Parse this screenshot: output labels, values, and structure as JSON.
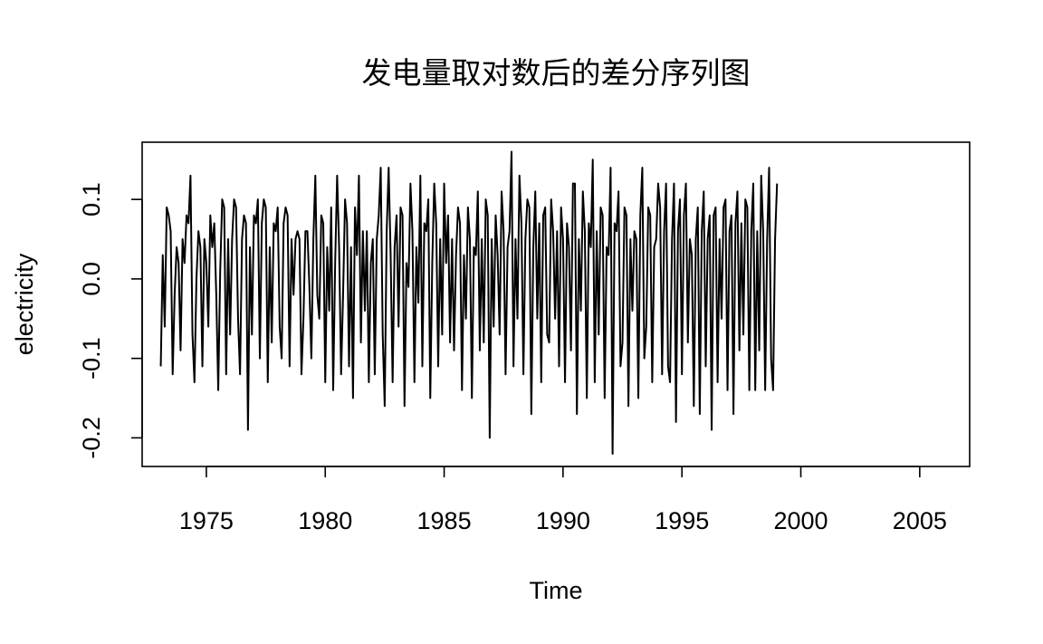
{
  "chart_data": {
    "type": "line",
    "title": "发电量取对数后的差分序列图",
    "xlabel": "Time",
    "ylabel": "electricity",
    "xlim": [
      1972.3,
      2007.1
    ],
    "ylim": [
      -0.236,
      0.172
    ],
    "x_ticks": [
      1975,
      1980,
      1985,
      1990,
      1995,
      2000,
      2005
    ],
    "x_tick_labels": [
      "1975",
      "1980",
      "1985",
      "1990",
      "1995",
      "2000",
      "2005"
    ],
    "y_ticks": [
      -0.2,
      -0.1,
      0.0,
      0.1
    ],
    "y_tick_labels": [
      "-0.2",
      "-0.1",
      "0.0",
      "0.1"
    ],
    "frequency": 12,
    "start": [
      1973,
      2
    ],
    "series": [
      {
        "values": [
          -0.11,
          0.03,
          -0.06,
          0.09,
          0.08,
          0.06,
          -0.12,
          -0.02,
          0.04,
          0.02,
          -0.09,
          0.05,
          0.02,
          0.08,
          0.07,
          0.13,
          -0.07,
          -0.13,
          0.0,
          0.06,
          0.04,
          -0.11,
          0.05,
          0.02,
          -0.06,
          0.08,
          0.04,
          0.07,
          -0.02,
          -0.14,
          0.01,
          0.1,
          0.09,
          -0.12,
          0.05,
          -0.07,
          0.05,
          0.1,
          0.09,
          -0.05,
          -0.12,
          0.05,
          0.08,
          0.07,
          -0.19,
          0.04,
          -0.07,
          0.08,
          0.07,
          0.1,
          -0.1,
          0.07,
          0.1,
          0.09,
          -0.13,
          0.04,
          -0.08,
          0.07,
          0.06,
          0.09,
          -0.06,
          -0.1,
          0.07,
          0.09,
          0.08,
          -0.11,
          0.05,
          -0.02,
          0.05,
          0.06,
          0.05,
          -0.12,
          -0.05,
          0.06,
          0.06,
          -0.01,
          -0.1,
          0.05,
          0.13,
          -0.02,
          -0.05,
          0.08,
          0.07,
          -0.13,
          0.04,
          -0.04,
          0.09,
          -0.14,
          0.02,
          0.13,
          0.04,
          -0.12,
          -0.02,
          0.1,
          0.07,
          -0.11,
          0.04,
          -0.15,
          0.09,
          0.03,
          0.13,
          -0.08,
          0.06,
          -0.04,
          0.06,
          -0.13,
          0.02,
          0.05,
          -0.12,
          0.05,
          0.08,
          0.14,
          -0.07,
          -0.16,
          0.06,
          0.14,
          0.03,
          -0.13,
          0.04,
          0.08,
          -0.06,
          0.09,
          0.08,
          -0.16,
          0.02,
          -0.01,
          0.12,
          0.06,
          -0.13,
          0.04,
          -0.03,
          0.13,
          -0.11,
          0.07,
          0.06,
          0.1,
          -0.15,
          0.02,
          0.12,
          0.07,
          -0.11,
          0.05,
          -0.07,
          0.12,
          0.02,
          0.08,
          -0.08,
          0.05,
          -0.09,
          0.03,
          0.09,
          0.07,
          -0.14,
          0.03,
          -0.05,
          0.09,
          0.05,
          -0.15,
          0.04,
          0.03,
          0.11,
          -0.09,
          0.05,
          -0.08,
          0.1,
          0.08,
          -0.2,
          0.05,
          -0.06,
          0.08,
          0.03,
          -0.07,
          0.11,
          0.06,
          -0.12,
          0.04,
          0.06,
          0.16,
          -0.11,
          0.05,
          -0.05,
          0.13,
          0.07,
          -0.12,
          0.05,
          0.1,
          0.09,
          -0.17,
          0.04,
          0.11,
          -0.05,
          0.07,
          -0.13,
          0.08,
          0.09,
          -0.07,
          -0.08,
          0.1,
          0.06,
          -0.05,
          0.06,
          -0.11,
          0.09,
          0.05,
          -0.13,
          0.07,
          0.04,
          -0.09,
          0.12,
          0.12,
          -0.17,
          0.05,
          -0.04,
          0.11,
          0.06,
          -0.15,
          0.07,
          0.04,
          0.15,
          -0.13,
          0.06,
          -0.07,
          0.09,
          0.08,
          -0.15,
          0.04,
          0.03,
          0.14,
          -0.22,
          0.07,
          0.06,
          0.11,
          -0.11,
          -0.08,
          0.09,
          0.08,
          -0.16,
          0.05,
          -0.04,
          0.06,
          0.05,
          -0.15,
          0.08,
          0.14,
          -0.1,
          -0.06,
          0.09,
          0.08,
          -0.13,
          0.04,
          0.05,
          0.12,
          0.09,
          -0.12,
          0.06,
          0.12,
          -0.11,
          -0.13,
          0.05,
          0.12,
          -0.18,
          0.06,
          0.1,
          -0.12,
          0.08,
          0.12,
          -0.08,
          0.05,
          0.03,
          -0.16,
          0.05,
          0.09,
          -0.17,
          0.06,
          0.11,
          -0.11,
          0.05,
          0.08,
          -0.19,
          0.08,
          0.09,
          -0.13,
          0.05,
          -0.05,
          0.09,
          0.1,
          -0.14,
          0.06,
          0.08,
          -0.17,
          0.07,
          0.11,
          -0.09,
          0.07,
          -0.07,
          0.1,
          0.09,
          -0.14,
          0.06,
          0.12,
          -0.14,
          0.06,
          -0.09,
          0.13,
          0.06,
          -0.14,
          0.05,
          0.14,
          -0.1,
          -0.14,
          0.05,
          0.12
        ]
      }
    ],
    "line_color": "#000000"
  }
}
